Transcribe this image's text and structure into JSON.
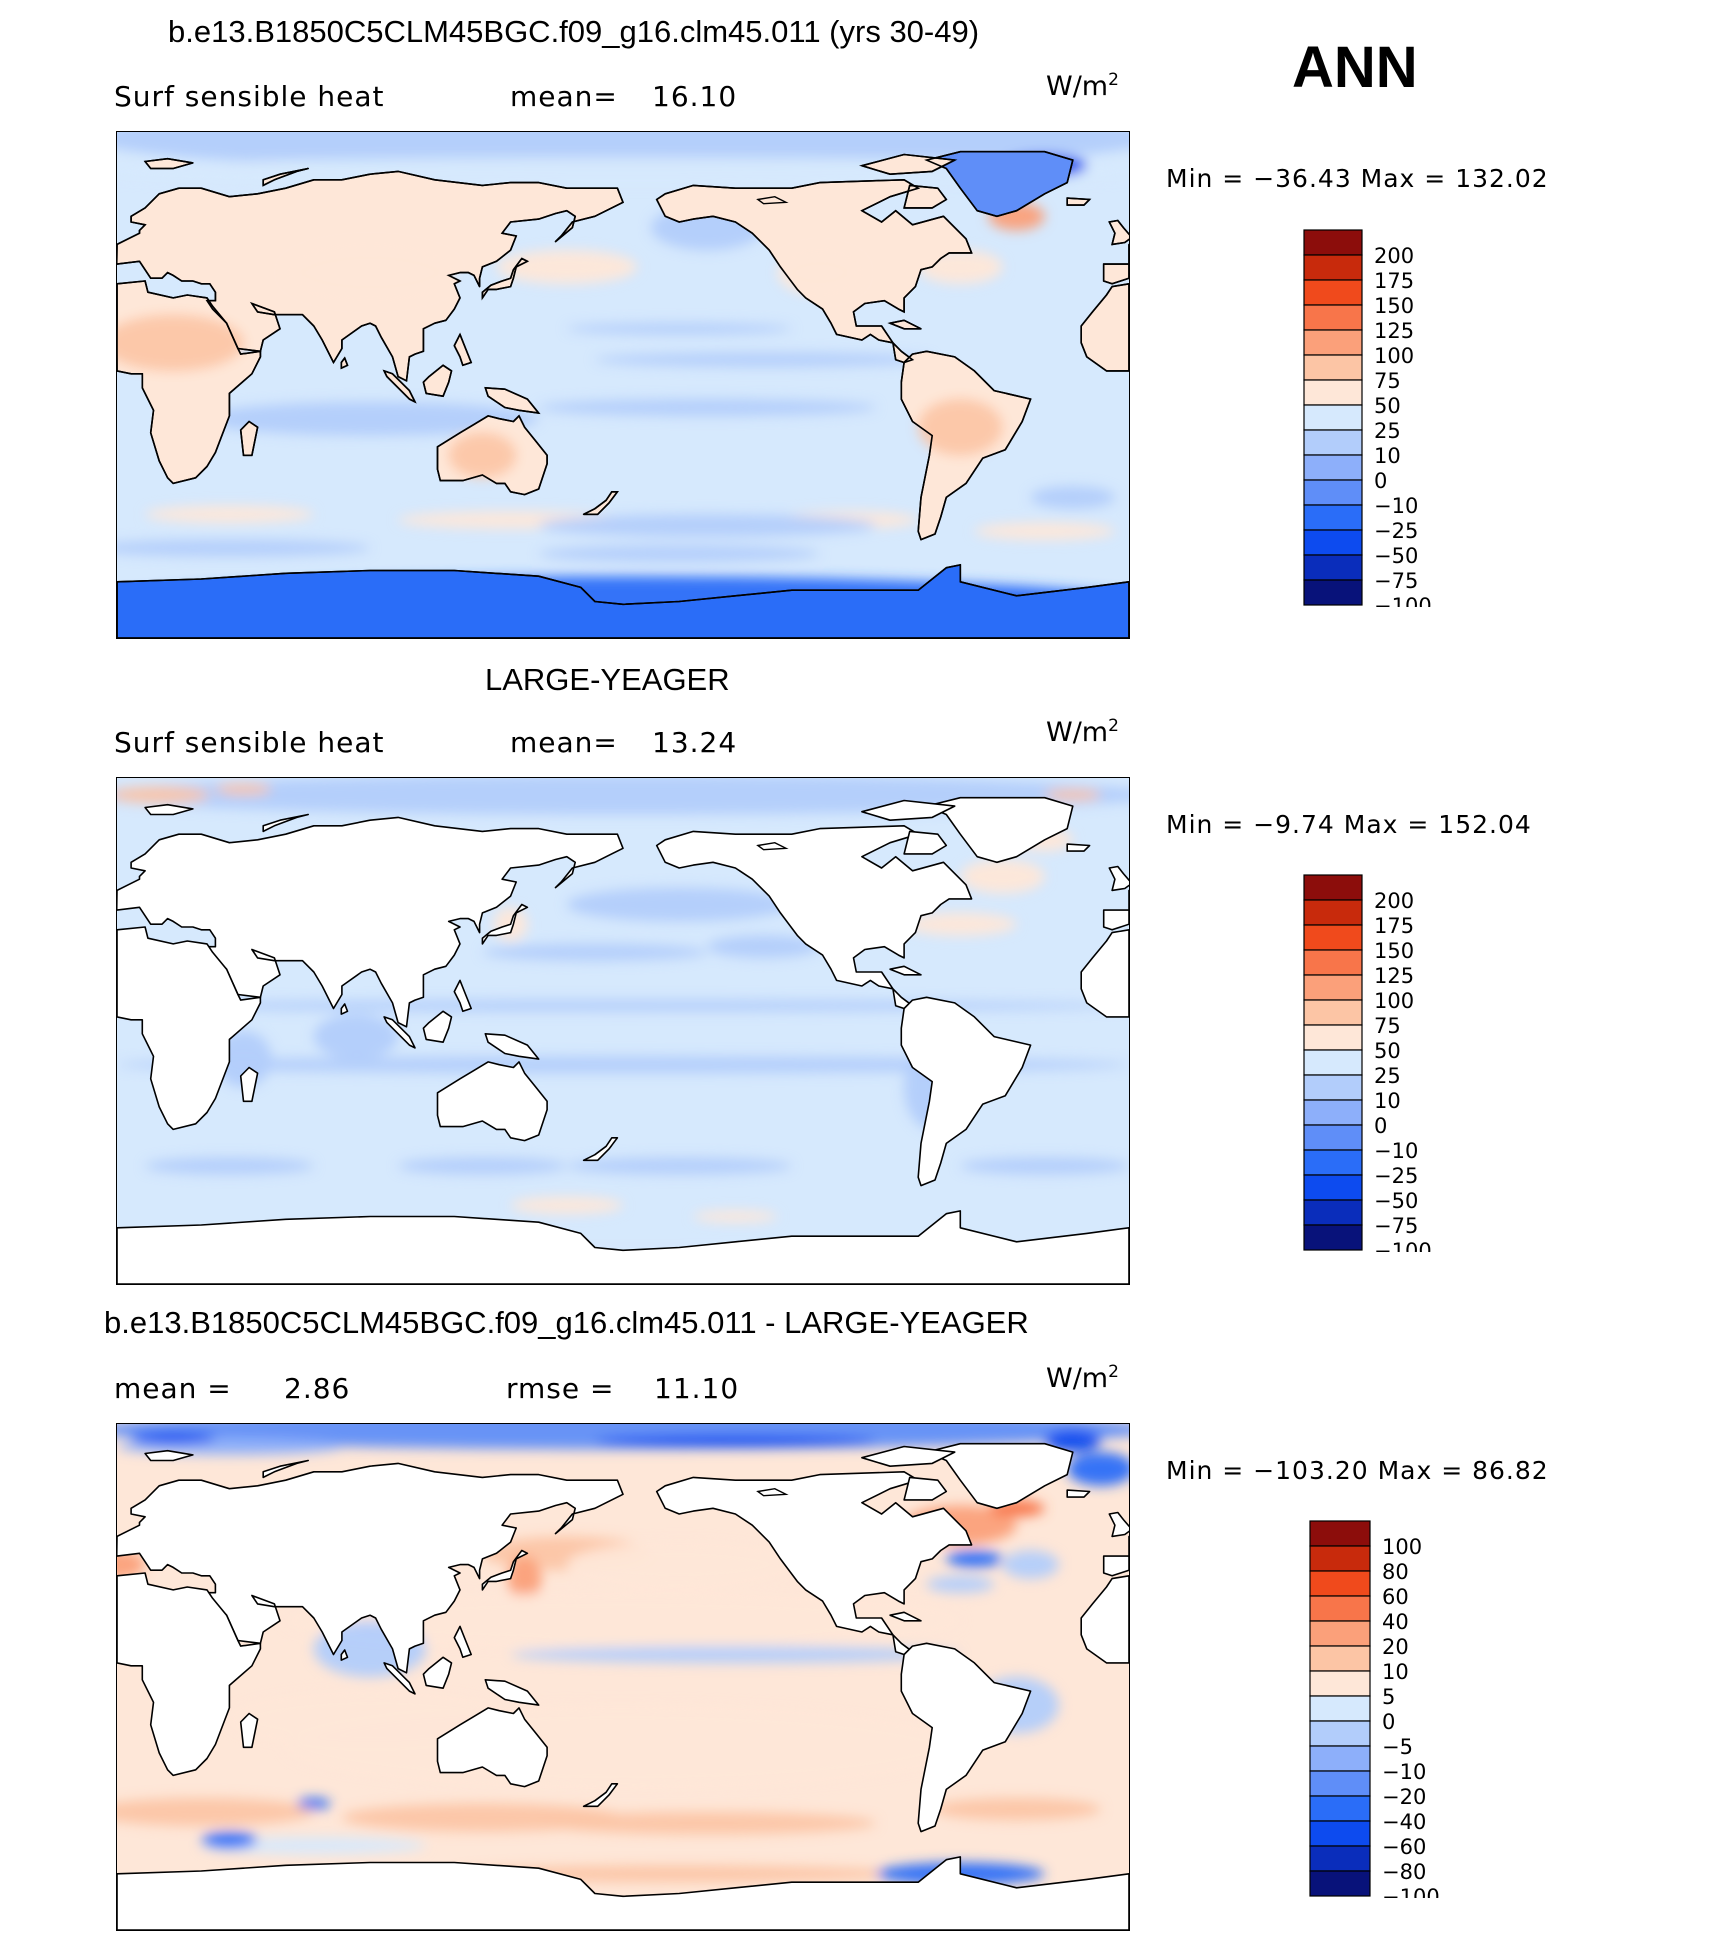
{
  "season": "ANN",
  "colors": {
    "cmap11": [
      "#08127a",
      "#0a2dbb",
      "#0d4bef",
      "#2a6df8",
      "#5f8ef8",
      "#8daffa",
      "#b2cdfb",
      "#d6e9fd",
      "#fee7d8",
      "#fcc5a5",
      "#fba07a",
      "#f8754a",
      "#f04a1c",
      "#c82a0c",
      "#8c0d0b"
    ],
    "land": "#ffffff",
    "coast": "#000000"
  },
  "chart_data": [
    {
      "type": "heatmap",
      "title": "b.e13.B1850C5CLM45BGC.f09_g16.clm45.011 (yrs 30-49)",
      "left_label": "Surf  sensible  heat",
      "mean_label": "mean=",
      "mean_value": "16.10",
      "units": "W/m",
      "units_sup": "2",
      "stats": "Min  =  −36.43  Max  =  132.02",
      "min": -36.43,
      "max": 132.02,
      "colorbar_levels": [
        "200",
        "175",
        "150",
        "125",
        "100",
        "75",
        "50",
        "25",
        "10",
        "0",
        "−10",
        "−25",
        "−50",
        "−75",
        "−100"
      ]
    },
    {
      "type": "heatmap",
      "title": "LARGE-YEAGER",
      "left_label": "Surf  sensible  heat",
      "mean_label": "mean=",
      "mean_value": "13.24",
      "units": "W/m",
      "units_sup": "2",
      "stats": "Min  =    −9.74  Max  =  152.04",
      "min": -9.74,
      "max": 152.04,
      "colorbar_levels": [
        "200",
        "175",
        "150",
        "125",
        "100",
        "75",
        "50",
        "25",
        "10",
        "0",
        "−10",
        "−25",
        "−50",
        "−75",
        "−100"
      ]
    },
    {
      "type": "heatmap",
      "title": "b.e13.B1850C5CLM45BGC.f09_g16.clm45.011 - LARGE-YEAGER",
      "mean_label": "mean  =",
      "mean_value": "2.86",
      "rmse_label": "rmse  =",
      "rmse_value": "11.10",
      "units": "W/m",
      "units_sup": "2",
      "stats": "Min  =  −103.20  Max  =    86.82",
      "min": -103.2,
      "max": 86.82,
      "colorbar_levels": [
        "100",
        "80",
        "60",
        "40",
        "20",
        "10",
        "5",
        "0",
        "−5",
        "−10",
        "−20",
        "−40",
        "−60",
        "−80",
        "−100"
      ]
    }
  ]
}
